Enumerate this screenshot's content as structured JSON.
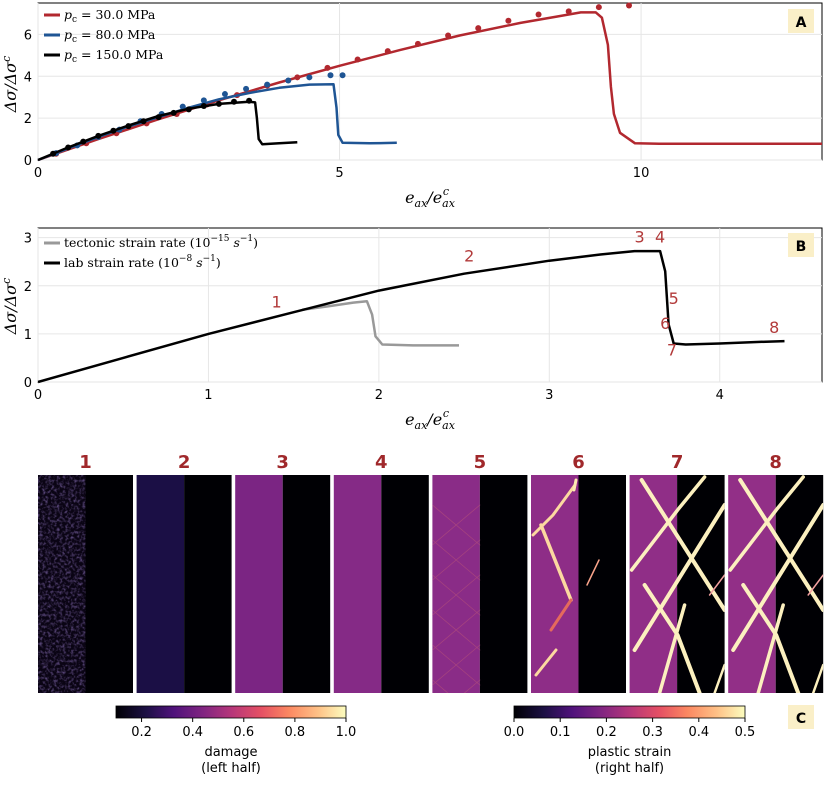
{
  "chart_data": [
    {
      "panel": "A",
      "type": "line",
      "xlabel": "e_ax / e^c_ax",
      "ylabel": "Δσ / Δσ^c",
      "xlim": [
        0,
        13
      ],
      "ylim": [
        0,
        7.5
      ],
      "xticks": [
        0,
        5,
        10
      ],
      "yticks": [
        0,
        2,
        4,
        6
      ],
      "grid": true,
      "legend_position": "top-left",
      "series": [
        {
          "name": "p_c = 30.0 MPa",
          "color": "#b2282f",
          "line": [
            [
              0,
              0
            ],
            [
              1,
              1.0
            ],
            [
              2,
              1.95
            ],
            [
              3,
              2.85
            ],
            [
              4,
              3.7
            ],
            [
              5,
              4.5
            ],
            [
              6,
              5.25
            ],
            [
              7,
              5.95
            ],
            [
              8,
              6.55
            ],
            [
              8.6,
              6.85
            ],
            [
              9.0,
              7.05
            ],
            [
              9.25,
              7.05
            ],
            [
              9.35,
              6.8
            ],
            [
              9.45,
              5.5
            ],
            [
              9.5,
              3.5
            ],
            [
              9.55,
              2.2
            ],
            [
              9.65,
              1.3
            ],
            [
              9.9,
              0.8
            ],
            [
              10.3,
              0.78
            ],
            [
              11,
              0.78
            ],
            [
              12,
              0.78
            ],
            [
              13,
              0.78
            ]
          ],
          "markers": [
            [
              0.3,
              0.3
            ],
            [
              0.8,
              0.8
            ],
            [
              1.3,
              1.28
            ],
            [
              1.8,
              1.75
            ],
            [
              2.3,
              2.2
            ],
            [
              2.8,
              2.65
            ],
            [
              3.3,
              3.1
            ],
            [
              3.8,
              3.55
            ],
            [
              4.3,
              3.95
            ],
            [
              4.8,
              4.4
            ],
            [
              5.3,
              4.8
            ],
            [
              5.8,
              5.2
            ],
            [
              6.3,
              5.55
            ],
            [
              6.8,
              5.95
            ],
            [
              7.3,
              6.3
            ],
            [
              7.8,
              6.65
            ],
            [
              8.3,
              6.95
            ],
            [
              8.8,
              7.1
            ],
            [
              9.3,
              7.3
            ],
            [
              9.8,
              7.38
            ]
          ]
        },
        {
          "name": "p_c = 80.0 MPa",
          "color": "#1f5594",
          "line": [
            [
              0,
              0
            ],
            [
              0.5,
              0.55
            ],
            [
              1,
              1.1
            ],
            [
              1.5,
              1.6
            ],
            [
              2,
              2.05
            ],
            [
              2.5,
              2.5
            ],
            [
              3,
              2.9
            ],
            [
              3.5,
              3.2
            ],
            [
              4,
              3.45
            ],
            [
              4.5,
              3.6
            ],
            [
              4.9,
              3.62
            ],
            [
              4.95,
              2.5
            ],
            [
              4.98,
              1.2
            ],
            [
              5.05,
              0.82
            ],
            [
              5.5,
              0.8
            ],
            [
              5.95,
              0.82
            ]
          ],
          "markers": [
            [
              0.3,
              0.33
            ],
            [
              0.65,
              0.7
            ],
            [
              1.0,
              1.1
            ],
            [
              1.35,
              1.45
            ],
            [
              1.7,
              1.85
            ],
            [
              2.05,
              2.2
            ],
            [
              2.4,
              2.55
            ],
            [
              2.75,
              2.85
            ],
            [
              3.1,
              3.15
            ],
            [
              3.45,
              3.4
            ],
            [
              3.8,
              3.6
            ],
            [
              4.15,
              3.8
            ],
            [
              4.5,
              3.95
            ],
            [
              4.85,
              4.05
            ],
            [
              5.05,
              4.05
            ]
          ]
        },
        {
          "name": "p_c = 150.0 MPa",
          "color": "#000000",
          "line": [
            [
              0,
              0
            ],
            [
              0.5,
              0.6
            ],
            [
              1,
              1.15
            ],
            [
              1.5,
              1.65
            ],
            [
              2,
              2.1
            ],
            [
              2.5,
              2.45
            ],
            [
              3,
              2.68
            ],
            [
              3.5,
              2.78
            ],
            [
              3.6,
              2.75
            ],
            [
              3.63,
              2.0
            ],
            [
              3.66,
              1.0
            ],
            [
              3.72,
              0.75
            ],
            [
              4.0,
              0.8
            ],
            [
              4.3,
              0.85
            ]
          ],
          "markers": [
            [
              0.25,
              0.3
            ],
            [
              0.5,
              0.6
            ],
            [
              0.75,
              0.88
            ],
            [
              1.0,
              1.15
            ],
            [
              1.25,
              1.4
            ],
            [
              1.5,
              1.62
            ],
            [
              1.75,
              1.85
            ],
            [
              2.0,
              2.05
            ],
            [
              2.25,
              2.25
            ],
            [
              2.5,
              2.42
            ],
            [
              2.75,
              2.58
            ],
            [
              3.0,
              2.68
            ],
            [
              3.25,
              2.78
            ],
            [
              3.5,
              2.83
            ]
          ]
        }
      ],
      "badge": "A"
    },
    {
      "panel": "B",
      "type": "line",
      "xlabel": "e_ax / e^c_ax",
      "ylabel": "Δσ / Δσ^c",
      "xlim": [
        0,
        4.6
      ],
      "ylim": [
        0,
        3.2
      ],
      "xticks": [
        0,
        1,
        2,
        3,
        4
      ],
      "yticks": [
        0,
        1,
        2,
        3
      ],
      "grid": true,
      "legend_position": "top-left",
      "series": [
        {
          "name": "tectonic strain rate (10^-15 s^-1)",
          "color": "#999999",
          "line": [
            [
              1.55,
              1.5
            ],
            [
              1.7,
              1.57
            ],
            [
              1.85,
              1.65
            ],
            [
              1.93,
              1.68
            ],
            [
              1.96,
              1.4
            ],
            [
              1.98,
              0.95
            ],
            [
              2.02,
              0.78
            ],
            [
              2.2,
              0.76
            ],
            [
              2.47,
              0.76
            ]
          ]
        },
        {
          "name": "lab strain rate (10^-8 s^-1)",
          "color": "#000000",
          "line": [
            [
              0,
              0
            ],
            [
              0.5,
              0.5
            ],
            [
              1,
              1.0
            ],
            [
              1.5,
              1.45
            ],
            [
              2,
              1.9
            ],
            [
              2.5,
              2.25
            ],
            [
              3,
              2.52
            ],
            [
              3.3,
              2.65
            ],
            [
              3.5,
              2.72
            ],
            [
              3.65,
              2.72
            ],
            [
              3.68,
              2.3
            ],
            [
              3.7,
              1.2
            ],
            [
              3.73,
              0.8
            ],
            [
              3.8,
              0.78
            ],
            [
              4,
              0.8
            ],
            [
              4.2,
              0.83
            ],
            [
              4.38,
              0.85
            ]
          ]
        }
      ],
      "annotations": [
        {
          "label": "1",
          "x": 1.4,
          "y": 1.55
        },
        {
          "label": "2",
          "x": 2.53,
          "y": 2.5
        },
        {
          "label": "3",
          "x": 3.53,
          "y": 2.9
        },
        {
          "label": "4",
          "x": 3.65,
          "y": 2.9
        },
        {
          "label": "5",
          "x": 3.73,
          "y": 1.62
        },
        {
          "label": "6",
          "x": 3.68,
          "y": 1.1
        },
        {
          "label": "7",
          "x": 3.72,
          "y": 0.55
        },
        {
          "label": "8",
          "x": 4.32,
          "y": 1.02
        }
      ],
      "badge": "B"
    },
    {
      "panel": "C",
      "type": "heatmap",
      "stage_labels": [
        "1",
        "2",
        "3",
        "4",
        "5",
        "6",
        "7",
        "8"
      ],
      "colorbars": [
        {
          "label_line1": "damage",
          "label_line2": "(left half)",
          "ticks": [
            "0.2",
            "0.4",
            "0.6",
            "0.8",
            "1.0"
          ],
          "range": [
            0.1,
            1.0
          ]
        },
        {
          "label_line1": "plastic strain",
          "label_line2": "(right half)",
          "ticks": [
            "0.0",
            "0.1",
            "0.2",
            "0.3",
            "0.4",
            "0.5"
          ],
          "range": [
            0.0,
            0.5
          ]
        }
      ],
      "badge": "C"
    }
  ]
}
